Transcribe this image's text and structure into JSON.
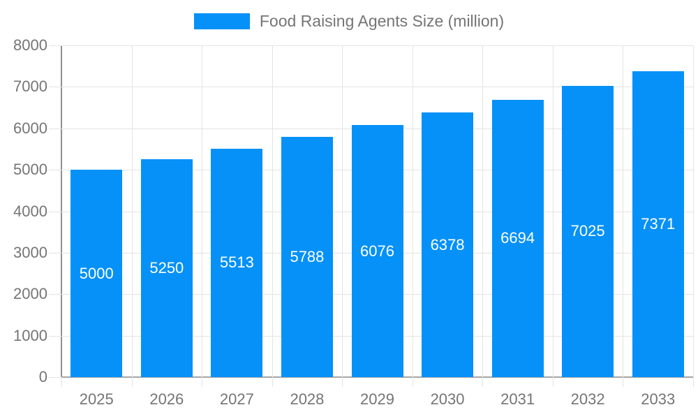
{
  "legend": {
    "label": "Food Raising Agents Size (million)",
    "swatch_color": "#0591f8"
  },
  "chart_data": {
    "type": "bar",
    "title": "Food Raising Agents Size (million)",
    "categories": [
      "2025",
      "2026",
      "2027",
      "2028",
      "2029",
      "2030",
      "2031",
      "2032",
      "2033"
    ],
    "values": [
      5000,
      5250,
      5513,
      5788,
      6076,
      6378,
      6694,
      7025,
      7371
    ],
    "value_labels": [
      "5000",
      "5250",
      "5513",
      "5788",
      "6076",
      "6378",
      "6694",
      "7025",
      "7371"
    ],
    "xlabel": "",
    "ylabel": "",
    "ylim": [
      0,
      8000
    ],
    "yticks": [
      0,
      1000,
      2000,
      3000,
      4000,
      5000,
      6000,
      7000,
      8000
    ],
    "grid": true,
    "legend_position": "top-center",
    "colors": {
      "bar": "#0591f8",
      "bar_value_text": "#ffffff",
      "axis_text": "#757575",
      "grid_line": "#e3e3e3",
      "axis_line": "#8f8f8f",
      "baseline": "#a6a6a6"
    }
  }
}
